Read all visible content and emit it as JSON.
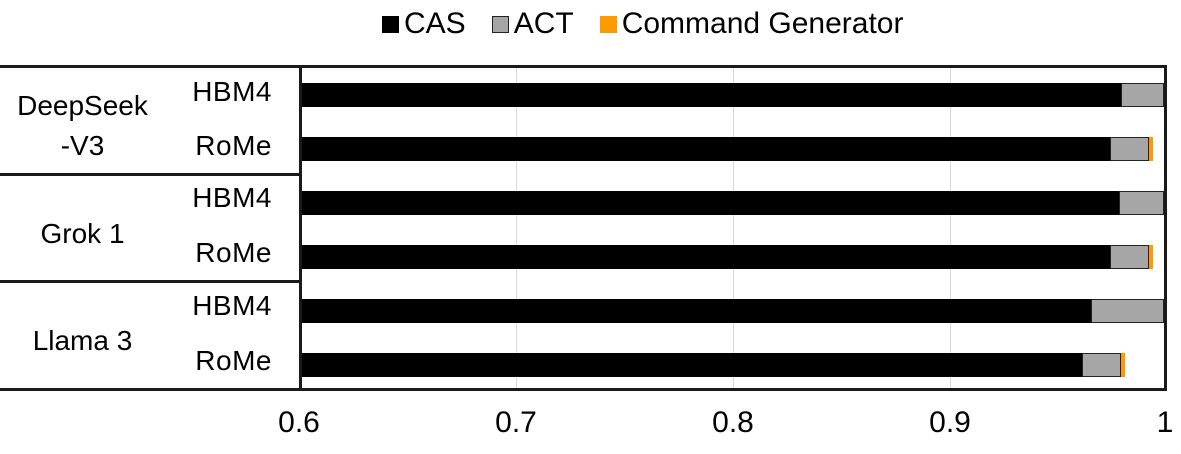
{
  "legend": {
    "items": [
      {
        "label": "CAS",
        "color": "#000000"
      },
      {
        "label": "ACT",
        "color": "#a6a6a6"
      },
      {
        "label": "Command Generator",
        "color": "#ff9900"
      }
    ]
  },
  "groups": [
    {
      "label_line1": "DeepSeek",
      "label_line2": "-V3",
      "bars": [
        {
          "label": "HBM4",
          "cas": 0.98,
          "act": 0.02,
          "cmd": 0.0
        },
        {
          "label": "RoMe",
          "cas": 0.975,
          "act": 0.018,
          "cmd": 0.002
        }
      ]
    },
    {
      "label_line1": "Grok 1",
      "label_line2": "",
      "bars": [
        {
          "label": "HBM4",
          "cas": 0.979,
          "act": 0.021,
          "cmd": 0.0
        },
        {
          "label": "RoMe",
          "cas": 0.975,
          "act": 0.018,
          "cmd": 0.002
        }
      ]
    },
    {
      "label_line1": "Llama 3",
      "label_line2": "",
      "bars": [
        {
          "label": "HBM4",
          "cas": 0.966,
          "act": 0.034,
          "cmd": 0.0
        },
        {
          "label": "RoMe",
          "cas": 0.962,
          "act": 0.018,
          "cmd": 0.002
        }
      ]
    }
  ],
  "x_axis": {
    "ticks": [
      "0.6",
      "0.7",
      "0.8",
      "0.9",
      "1"
    ],
    "min": 0.6,
    "max": 1.0
  },
  "chart_data": {
    "type": "bar",
    "orientation": "horizontal",
    "stacked": true,
    "title": "",
    "xlabel": "",
    "ylabel": "",
    "xlim": [
      0.6,
      1.0
    ],
    "grid": "vertical gridlines at 0.7, 0.8, 0.9",
    "legend_position": "top",
    "categories": [
      "DeepSeek-V3 / HBM4",
      "DeepSeek-V3 / RoMe",
      "Grok 1 / HBM4",
      "Grok 1 / RoMe",
      "Llama 3 / HBM4",
      "Llama 3 / RoMe"
    ],
    "series": [
      {
        "name": "CAS",
        "values": [
          0.98,
          0.975,
          0.979,
          0.975,
          0.966,
          0.962
        ]
      },
      {
        "name": "ACT",
        "values": [
          0.02,
          0.018,
          0.021,
          0.018,
          0.034,
          0.018
        ]
      },
      {
        "name": "Command Generator",
        "values": [
          0.0,
          0.002,
          0.0,
          0.002,
          0.0,
          0.002
        ]
      }
    ],
    "x_ticks": [
      0.6,
      0.7,
      0.8,
      0.9,
      1.0
    ]
  }
}
